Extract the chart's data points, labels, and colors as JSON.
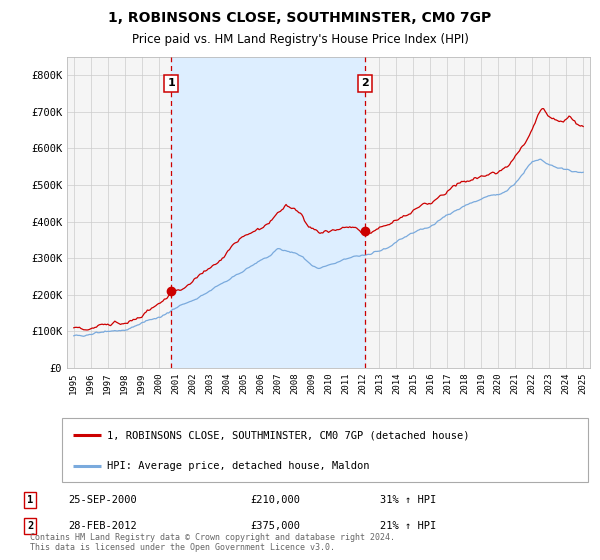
{
  "title": "1, ROBINSONS CLOSE, SOUTHMINSTER, CM0 7GP",
  "subtitle": "Price paid vs. HM Land Registry's House Price Index (HPI)",
  "legend_line1": "1, ROBINSONS CLOSE, SOUTHMINSTER, CM0 7GP (detached house)",
  "legend_line2": "HPI: Average price, detached house, Maldon",
  "sale1_label": "1",
  "sale1_date": "25-SEP-2000",
  "sale1_price": "£210,000",
  "sale1_hpi": "31% ↑ HPI",
  "sale1_x": 2000.73,
  "sale1_y": 210000,
  "sale2_label": "2",
  "sale2_date": "28-FEB-2012",
  "sale2_price": "£375,000",
  "sale2_hpi": "21% ↑ HPI",
  "sale2_x": 2012.16,
  "sale2_y": 375000,
  "vline1_x": 2000.73,
  "vline2_x": 2012.16,
  "shade_xmin": 2000.73,
  "shade_xmax": 2012.16,
  "red_color": "#cc0000",
  "blue_color": "#7aaadd",
  "shade_color": "#ddeeff",
  "grid_color": "#cccccc",
  "ylabel_ticks": [
    "£0",
    "£100K",
    "£200K",
    "£300K",
    "£400K",
    "£500K",
    "£600K",
    "£700K",
    "£800K"
  ],
  "ytick_vals": [
    0,
    100000,
    200000,
    300000,
    400000,
    500000,
    600000,
    700000,
    800000
  ],
  "ylim": [
    0,
    850000
  ],
  "xlim_min": 1994.6,
  "xlim_max": 2025.4,
  "footer_text": "Contains HM Land Registry data © Crown copyright and database right 2024.\nThis data is licensed under the Open Government Licence v3.0.",
  "background_color": "#f5f5f5"
}
